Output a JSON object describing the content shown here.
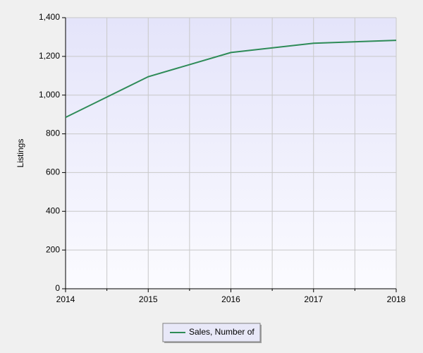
{
  "chart_data": {
    "type": "line",
    "y_label": "Listings",
    "x": [
      2014,
      2015,
      2016,
      2017,
      2018
    ],
    "series": [
      {
        "name": "Sales, Number of",
        "color": "#2e8b57",
        "values": [
          885,
          1095,
          1220,
          1268,
          1283
        ]
      }
    ],
    "xlim": [
      2014,
      2018
    ],
    "xticks": [
      2014,
      2015,
      2016,
      2017,
      2018
    ],
    "ylim": [
      0,
      1400
    ],
    "yticks": [
      0,
      200,
      400,
      600,
      800,
      {
        "value": 1000,
        "label": "1,000"
      },
      {
        "value": 1200,
        "label": "1,200"
      },
      {
        "value": 1400,
        "label": "1,400"
      }
    ],
    "grid": true,
    "legend": "bottom"
  }
}
